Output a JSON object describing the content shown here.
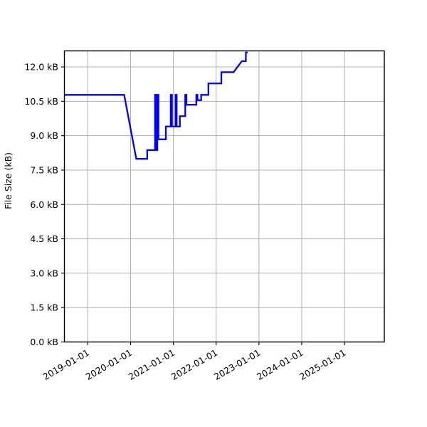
{
  "figure": {
    "background": "#ffffff"
  },
  "chart_data": {
    "type": "line",
    "title": "",
    "xlabel": "",
    "ylabel": "File Size (kB)",
    "grid": true,
    "legend": "none",
    "line_color": "#0000ff",
    "grid_color": "#b0b0b0",
    "axis_color": "#000000",
    "background_color": "#ffffff",
    "ylim": [
      0,
      12.7
    ],
    "xlim": [
      "2018-06-14",
      "2025-12-06"
    ],
    "x_ticks": [
      "2019-01-01",
      "2020-01-01",
      "2021-01-01",
      "2022-01-01",
      "2023-01-01",
      "2024-01-01",
      "2025-01-01"
    ],
    "y_ticks": [
      {
        "value": 0.0,
        "label": "0.0 kB"
      },
      {
        "value": 1.5,
        "label": "1.5 kB"
      },
      {
        "value": 3.0,
        "label": "3.0 kB"
      },
      {
        "value": 4.5,
        "label": "4.5 kB"
      },
      {
        "value": 6.0,
        "label": "6.0 kB"
      },
      {
        "value": 7.5,
        "label": "7.5 kB"
      },
      {
        "value": 9.0,
        "label": "9.0 kB"
      },
      {
        "value": 10.5,
        "label": "10.5 kB"
      },
      {
        "value": 12.0,
        "label": "12.0 kB"
      }
    ],
    "series": [
      {
        "name": "file-size-kb",
        "interpolation": "linear-with-steps",
        "points": [
          [
            "2018-06-14",
            10.78
          ],
          [
            "2019-11-07",
            10.78
          ],
          [
            "2020-02-19",
            7.99
          ],
          [
            "2020-05-21",
            7.99
          ],
          [
            "2020-05-21",
            8.37
          ],
          [
            "2020-07-27",
            8.37
          ],
          [
            "2020-07-27",
            10.78
          ],
          [
            "2020-08-06",
            10.78
          ],
          [
            "2020-08-06",
            8.37
          ],
          [
            "2020-08-16",
            8.37
          ],
          [
            "2020-08-16",
            10.78
          ],
          [
            "2020-08-26",
            10.78
          ],
          [
            "2020-08-26",
            8.84
          ],
          [
            "2020-10-28",
            8.84
          ],
          [
            "2020-10-28",
            9.4
          ],
          [
            "2020-12-09",
            9.4
          ],
          [
            "2020-12-09",
            10.78
          ],
          [
            "2020-12-19",
            10.78
          ],
          [
            "2020-12-19",
            9.4
          ],
          [
            "2021-01-19",
            9.4
          ],
          [
            "2021-01-19",
            10.78
          ],
          [
            "2021-01-29",
            10.78
          ],
          [
            "2021-01-29",
            9.4
          ],
          [
            "2021-02-26",
            9.4
          ],
          [
            "2021-02-26",
            9.85
          ],
          [
            "2021-04-11",
            9.85
          ],
          [
            "2021-04-11",
            10.78
          ],
          [
            "2021-04-21",
            10.78
          ],
          [
            "2021-04-21",
            10.35
          ],
          [
            "2021-07-14",
            10.35
          ],
          [
            "2021-07-14",
            10.78
          ],
          [
            "2021-07-24",
            10.78
          ],
          [
            "2021-07-24",
            10.55
          ],
          [
            "2021-08-25",
            10.55
          ],
          [
            "2021-08-25",
            10.78
          ],
          [
            "2021-10-26",
            10.78
          ],
          [
            "2021-10-26",
            11.28
          ],
          [
            "2022-02-15",
            11.28
          ],
          [
            "2022-02-15",
            11.77
          ],
          [
            "2022-05-28",
            11.77
          ],
          [
            "2022-07-08",
            12.05
          ],
          [
            "2022-08-07",
            12.25
          ],
          [
            "2022-09-11",
            12.25
          ],
          [
            "2022-09-11",
            12.63
          ],
          [
            "2022-09-26",
            12.63
          ]
        ]
      }
    ]
  }
}
